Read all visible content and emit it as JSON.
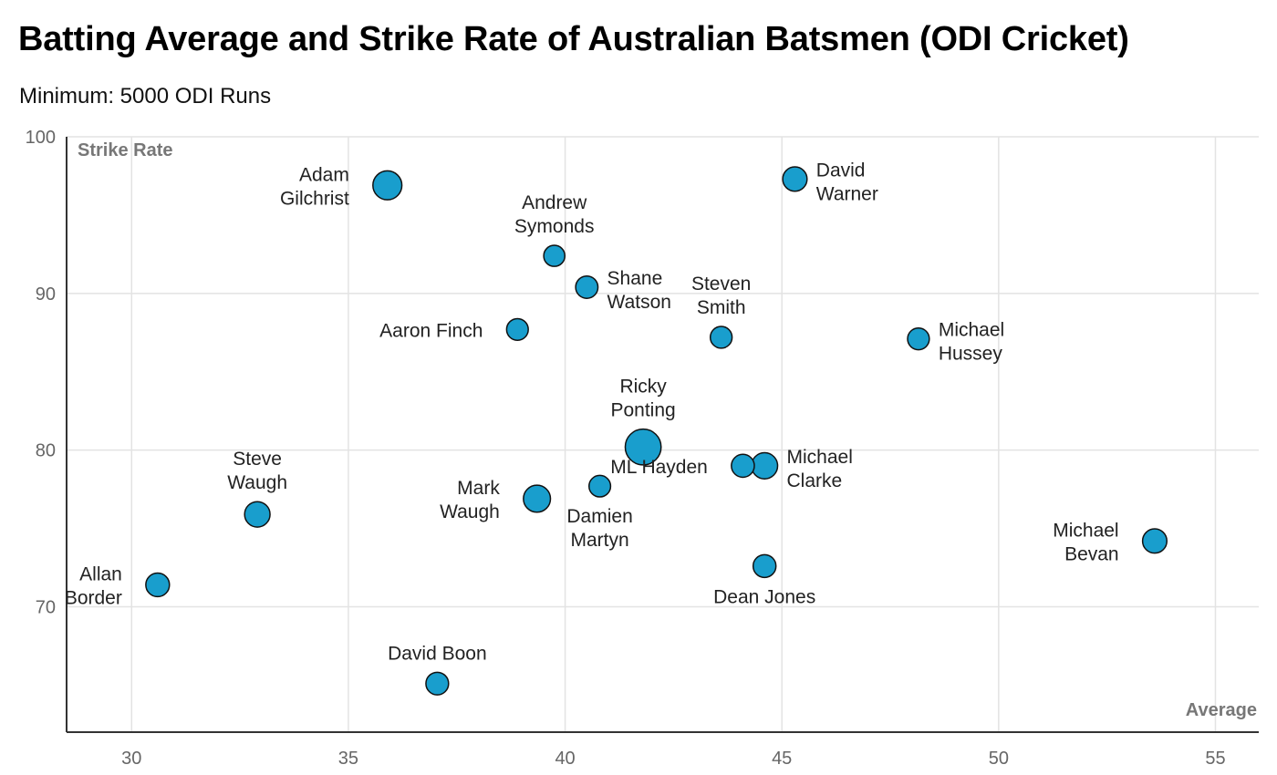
{
  "title": "Batting Average and Strike Rate of Australian Batsmen (ODI Cricket)",
  "subtitle": "Minimum: 5000 ODI Runs",
  "colors": {
    "bubble": "#199ecd",
    "bubble_stroke": "#111111",
    "grid": "#e3e3e3",
    "axis": "#333333"
  },
  "chart_data": {
    "type": "scatter",
    "xlabel": "Average",
    "ylabel": "Strike Rate",
    "xlim": [
      28.5,
      56
    ],
    "ylim": [
      62,
      100
    ],
    "xticks": [
      30,
      35,
      40,
      45,
      50,
      55
    ],
    "yticks": [
      70,
      80,
      90,
      100
    ],
    "grid": true,
    "points": [
      {
        "name": "Adam Gilchrist",
        "label": [
          "Adam",
          "Gilchrist"
        ],
        "x": 35.9,
        "y": 96.9,
        "size": 9619,
        "label_pos": "left"
      },
      {
        "name": "David Warner",
        "label": [
          "David",
          "Warner"
        ],
        "x": 45.3,
        "y": 97.3,
        "size": 6932,
        "label_pos": "right"
      },
      {
        "name": "Andrew Symonds",
        "label": [
          "Andrew",
          "Symonds"
        ],
        "x": 39.75,
        "y": 92.4,
        "size": 5088,
        "label_pos": "top"
      },
      {
        "name": "Shane Watson",
        "label": [
          "Shane",
          "Watson"
        ],
        "x": 40.5,
        "y": 90.4,
        "size": 5757,
        "label_pos": "right"
      },
      {
        "name": "Steven Smith",
        "label": [
          "Steven",
          "Smith"
        ],
        "x": 43.6,
        "y": 87.2,
        "size": 5468,
        "label_pos": "top"
      },
      {
        "name": "Aaron Finch",
        "label": [
          "Aaron Finch"
        ],
        "x": 38.9,
        "y": 87.7,
        "size": 5406,
        "label_pos": "left"
      },
      {
        "name": "Michael Hussey",
        "label": [
          "Michael",
          "Hussey"
        ],
        "x": 48.15,
        "y": 87.1,
        "size": 5442,
        "label_pos": "right"
      },
      {
        "name": "Ricky Ponting",
        "label": [
          "Ricky",
          "Ponting"
        ],
        "x": 41.8,
        "y": 80.2,
        "size": 13589,
        "label_pos": "top"
      },
      {
        "name": "ML Hayden",
        "label": [
          "ML Hayden"
        ],
        "x": 44.1,
        "y": 79.0,
        "size": 6131,
        "label_pos": "left"
      },
      {
        "name": "Michael Clarke",
        "label": [
          "Michael",
          "Clarke"
        ],
        "x": 44.6,
        "y": 79.0,
        "size": 7981,
        "label_pos": "right"
      },
      {
        "name": "Steve Waugh",
        "label": [
          "Steve",
          "Waugh"
        ],
        "x": 32.9,
        "y": 75.9,
        "size": 7569,
        "label_pos": "top"
      },
      {
        "name": "Mark Waugh",
        "label": [
          "Mark",
          "Waugh"
        ],
        "x": 39.35,
        "y": 76.9,
        "size": 8500,
        "label_pos": "left"
      },
      {
        "name": "Damien Martyn",
        "label": [
          "Damien",
          "Martyn"
        ],
        "x": 40.8,
        "y": 77.7,
        "size": 5346,
        "label_pos": "bottom"
      },
      {
        "name": "Michael Bevan",
        "label": [
          "Michael",
          "Bevan"
        ],
        "x": 53.6,
        "y": 74.2,
        "size": 6912,
        "label_pos": "left"
      },
      {
        "name": "Dean Jones",
        "label": [
          "Dean Jones"
        ],
        "x": 44.6,
        "y": 72.6,
        "size": 6068,
        "label_pos": "bottom"
      },
      {
        "name": "Allan Border",
        "label": [
          "Allan",
          "Border"
        ],
        "x": 30.6,
        "y": 71.4,
        "size": 6524,
        "label_pos": "left"
      },
      {
        "name": "David Boon",
        "label": [
          "David Boon"
        ],
        "x": 37.05,
        "y": 65.1,
        "size": 5964,
        "label_pos": "top"
      }
    ]
  }
}
